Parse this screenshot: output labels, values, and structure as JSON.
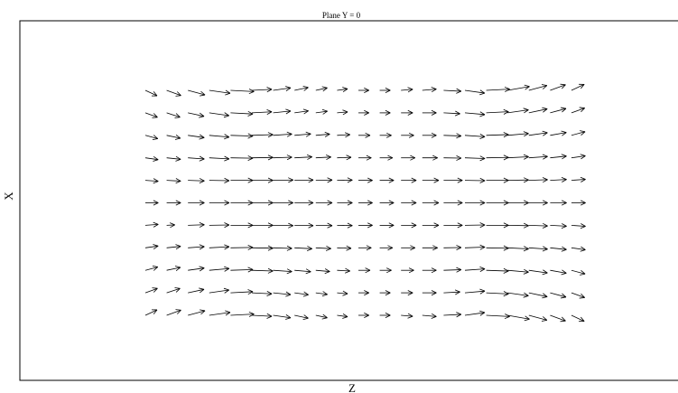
{
  "chart_data": {
    "type": "vector-field",
    "title": "Plane Y = 0",
    "xlabel": "Z",
    "ylabel": "X",
    "grid": false,
    "colors": {
      "arrow": "#000000",
      "frame": "#000000",
      "background": "#ffffff"
    },
    "field": {
      "columns": 21,
      "rows": 11,
      "row_order": "top-to-bottom",
      "rows_data": [
        {
          "magnitude": [
            0.55,
            0.65,
            0.75,
            0.9,
            1.0,
            0.85,
            0.75,
            0.6,
            0.5,
            0.45,
            0.45,
            0.45,
            0.5,
            0.6,
            0.75,
            0.85,
            1.0,
            0.95,
            0.8,
            0.7,
            0.6
          ],
          "angle_deg": [
            -25,
            -20,
            -15,
            -8,
            -3,
            3,
            8,
            12,
            12,
            8,
            0,
            0,
            5,
            5,
            -3,
            -8,
            3,
            10,
            15,
            20,
            25
          ]
        },
        {
          "magnitude": [
            0.55,
            0.6,
            0.7,
            0.85,
            0.95,
            0.85,
            0.75,
            0.6,
            0.5,
            0.45,
            0.45,
            0.45,
            0.5,
            0.6,
            0.7,
            0.85,
            0.95,
            0.9,
            0.8,
            0.7,
            0.6
          ],
          "angle_deg": [
            -20,
            -18,
            -12,
            -8,
            -3,
            3,
            6,
            8,
            8,
            5,
            0,
            0,
            0,
            0,
            -3,
            -5,
            3,
            8,
            12,
            15,
            20
          ]
        },
        {
          "magnitude": [
            0.55,
            0.6,
            0.7,
            0.85,
            0.95,
            0.9,
            0.8,
            0.7,
            0.6,
            0.55,
            0.5,
            0.5,
            0.55,
            0.6,
            0.75,
            0.85,
            0.95,
            0.9,
            0.8,
            0.7,
            0.6
          ],
          "angle_deg": [
            -15,
            -12,
            -8,
            -5,
            -2,
            2,
            4,
            5,
            5,
            3,
            0,
            0,
            0,
            0,
            -2,
            -4,
            2,
            5,
            8,
            10,
            15
          ]
        },
        {
          "magnitude": [
            0.55,
            0.6,
            0.7,
            0.85,
            0.95,
            0.9,
            0.8,
            0.75,
            0.65,
            0.6,
            0.55,
            0.55,
            0.6,
            0.65,
            0.75,
            0.85,
            0.95,
            0.9,
            0.8,
            0.7,
            0.6
          ],
          "angle_deg": [
            -8,
            -6,
            -4,
            -3,
            -1,
            1,
            2,
            3,
            3,
            2,
            0,
            0,
            0,
            0,
            -1,
            -2,
            1,
            3,
            4,
            6,
            8
          ]
        },
        {
          "magnitude": [
            0.55,
            0.6,
            0.7,
            0.85,
            0.95,
            0.9,
            0.85,
            0.8,
            0.7,
            0.65,
            0.6,
            0.6,
            0.65,
            0.7,
            0.8,
            0.85,
            0.95,
            0.9,
            0.8,
            0.7,
            0.6
          ],
          "angle_deg": [
            -4,
            -3,
            -2,
            -1,
            0,
            0,
            1,
            1,
            1,
            1,
            0,
            0,
            0,
            0,
            0,
            -1,
            0,
            1,
            2,
            3,
            4
          ]
        },
        {
          "magnitude": [
            0.55,
            0.6,
            0.7,
            0.85,
            0.95,
            0.9,
            0.85,
            0.8,
            0.7,
            0.65,
            0.6,
            0.6,
            0.65,
            0.7,
            0.8,
            0.85,
            0.95,
            0.9,
            0.8,
            0.7,
            0.6
          ],
          "angle_deg": [
            0,
            0,
            0,
            0,
            0,
            0,
            0,
            0,
            0,
            0,
            0,
            0,
            0,
            0,
            0,
            0,
            0,
            0,
            0,
            0,
            0
          ]
        },
        {
          "magnitude": [
            0.55,
            0.35,
            0.7,
            0.85,
            0.95,
            0.9,
            0.85,
            0.8,
            0.7,
            0.65,
            0.6,
            0.6,
            0.65,
            0.7,
            0.8,
            0.85,
            0.95,
            0.9,
            0.8,
            0.7,
            0.6
          ],
          "angle_deg": [
            4,
            3,
            2,
            1,
            0,
            0,
            -1,
            -1,
            -1,
            -1,
            0,
            0,
            0,
            0,
            0,
            1,
            0,
            -1,
            -2,
            -3,
            -4
          ]
        },
        {
          "magnitude": [
            0.55,
            0.6,
            0.7,
            0.85,
            0.95,
            0.9,
            0.8,
            0.75,
            0.65,
            0.6,
            0.55,
            0.55,
            0.6,
            0.65,
            0.75,
            0.85,
            0.95,
            0.9,
            0.8,
            0.7,
            0.6
          ],
          "angle_deg": [
            8,
            6,
            4,
            3,
            1,
            -1,
            -2,
            -3,
            -3,
            -2,
            0,
            0,
            0,
            0,
            1,
            2,
            -1,
            -3,
            -4,
            -6,
            -8
          ]
        },
        {
          "magnitude": [
            0.55,
            0.6,
            0.7,
            0.85,
            0.95,
            0.9,
            0.8,
            0.7,
            0.6,
            0.55,
            0.5,
            0.5,
            0.55,
            0.6,
            0.75,
            0.85,
            0.95,
            0.9,
            0.8,
            0.7,
            0.6
          ],
          "angle_deg": [
            15,
            12,
            8,
            5,
            2,
            -2,
            -4,
            -5,
            -5,
            -3,
            0,
            0,
            0,
            0,
            2,
            4,
            -2,
            -5,
            -8,
            -10,
            -15
          ]
        },
        {
          "magnitude": [
            0.55,
            0.6,
            0.7,
            0.85,
            0.95,
            0.85,
            0.75,
            0.6,
            0.5,
            0.45,
            0.45,
            0.45,
            0.5,
            0.6,
            0.7,
            0.85,
            0.95,
            0.9,
            0.8,
            0.7,
            0.6
          ],
          "angle_deg": [
            20,
            18,
            12,
            8,
            3,
            -3,
            -6,
            -8,
            -8,
            -5,
            0,
            0,
            0,
            0,
            3,
            5,
            -3,
            -8,
            -12,
            -15,
            -20
          ]
        },
        {
          "magnitude": [
            0.55,
            0.65,
            0.75,
            0.9,
            1.0,
            0.85,
            0.75,
            0.6,
            0.5,
            0.45,
            0.45,
            0.45,
            0.5,
            0.6,
            0.75,
            0.85,
            1.0,
            0.95,
            0.8,
            0.7,
            0.6
          ],
          "angle_deg": [
            25,
            20,
            15,
            8,
            3,
            -3,
            -8,
            -12,
            -12,
            -8,
            0,
            0,
            -5,
            -5,
            3,
            8,
            -3,
            -10,
            -15,
            -20,
            -25
          ]
        }
      ]
    }
  }
}
